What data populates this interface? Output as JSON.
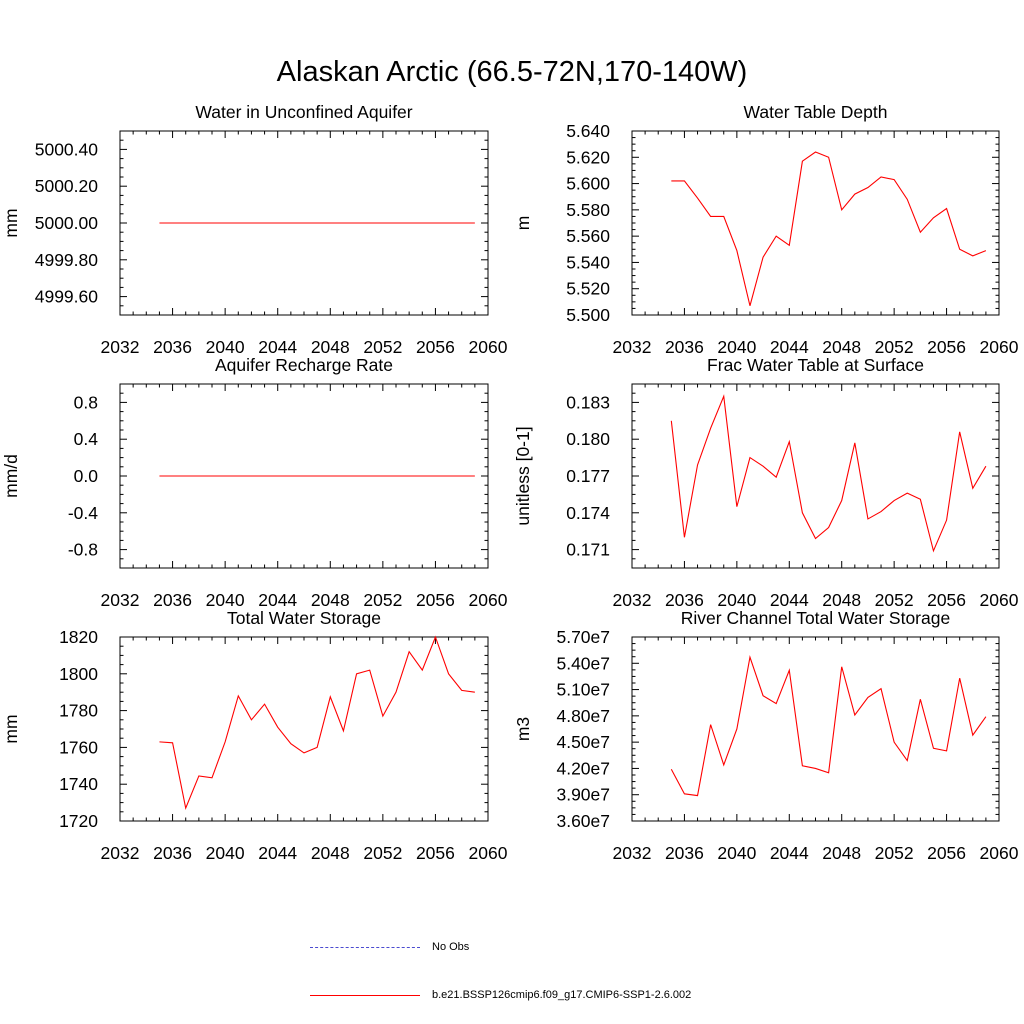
{
  "page": {
    "title": "Alaskan Arctic (66.5-72N,170-140W)"
  },
  "colors": {
    "model": "#ff0000",
    "obs": "#4a4ad0",
    "axis": "#000000"
  },
  "legend": {
    "items": [
      {
        "label": "No Obs",
        "style": "dashed",
        "color": "#4a4ad0"
      },
      {
        "label": "b.e21.BSSP126cmip6.f09_g17.CMIP6-SSP1-2.6.002",
        "style": "solid",
        "color": "#ff0000"
      }
    ]
  },
  "chart_data": [
    {
      "type": "line",
      "title": "Water in Unconfined Aquifer",
      "ylabel": "mm",
      "xlim": [
        2032,
        2060
      ],
      "ylim": [
        4999.5,
        5000.5
      ],
      "xticks": [
        "2032",
        "2036",
        "2040",
        "2044",
        "2048",
        "2052",
        "2056",
        "2060"
      ],
      "yticks": [
        "4999.60",
        "4999.80",
        "5000.00",
        "5000.20",
        "5000.40"
      ],
      "ytick_values": [
        4999.6,
        4999.8,
        5000.0,
        5000.2,
        5000.4
      ],
      "x": [
        2035,
        2036,
        2037,
        2038,
        2039,
        2040,
        2041,
        2042,
        2043,
        2044,
        2045,
        2046,
        2047,
        2048,
        2049,
        2050,
        2051,
        2052,
        2053,
        2054,
        2055,
        2056,
        2057,
        2058,
        2059
      ],
      "series": [
        {
          "values": [
            5000,
            5000,
            5000,
            5000,
            5000,
            5000,
            5000,
            5000,
            5000,
            5000,
            5000,
            5000,
            5000,
            5000,
            5000,
            5000,
            5000,
            5000,
            5000,
            5000,
            5000,
            5000,
            5000,
            5000,
            5000
          ]
        }
      ]
    },
    {
      "type": "line",
      "title": "Water Table Depth",
      "ylabel": "m",
      "xlim": [
        2032,
        2060
      ],
      "ylim": [
        5.5,
        5.64
      ],
      "xticks": [
        "2032",
        "2036",
        "2040",
        "2044",
        "2048",
        "2052",
        "2056",
        "2060"
      ],
      "yticks": [
        "5.500",
        "5.520",
        "5.540",
        "5.560",
        "5.580",
        "5.600",
        "5.620",
        "5.640"
      ],
      "ytick_values": [
        5.5,
        5.52,
        5.54,
        5.56,
        5.58,
        5.6,
        5.62,
        5.64
      ],
      "x": [
        2035,
        2036,
        2037,
        2038,
        2039,
        2040,
        2041,
        2042,
        2043,
        2044,
        2045,
        2046,
        2047,
        2048,
        2049,
        2050,
        2051,
        2052,
        2053,
        2054,
        2055,
        2056,
        2057,
        2058,
        2059
      ],
      "series": [
        {
          "values": [
            5.602,
            5.602,
            5.589,
            5.575,
            5.575,
            5.549,
            5.507,
            5.544,
            5.56,
            5.553,
            5.617,
            5.624,
            5.62,
            5.58,
            5.592,
            5.597,
            5.605,
            5.603,
            5.588,
            5.563,
            5.574,
            5.581,
            5.55,
            5.545,
            5.549
          ]
        }
      ]
    },
    {
      "type": "line",
      "title": "Aquifer Recharge Rate",
      "ylabel": "mm/d",
      "xlim": [
        2032,
        2060
      ],
      "ylim": [
        -1.0,
        1.0
      ],
      "xticks": [
        "2032",
        "2036",
        "2040",
        "2044",
        "2048",
        "2052",
        "2056",
        "2060"
      ],
      "yticks": [
        "-0.8",
        "-0.4",
        "0.0",
        "0.4",
        "0.8"
      ],
      "ytick_values": [
        -0.8,
        -0.4,
        0.0,
        0.4,
        0.8
      ],
      "x": [
        2035,
        2036,
        2037,
        2038,
        2039,
        2040,
        2041,
        2042,
        2043,
        2044,
        2045,
        2046,
        2047,
        2048,
        2049,
        2050,
        2051,
        2052,
        2053,
        2054,
        2055,
        2056,
        2057,
        2058,
        2059
      ],
      "series": [
        {
          "values": [
            0,
            0,
            0,
            0,
            0,
            0,
            0,
            0,
            0,
            0,
            0,
            0,
            0,
            0,
            0,
            0,
            0,
            0,
            0,
            0,
            0,
            0,
            0,
            0,
            0
          ]
        }
      ]
    },
    {
      "type": "line",
      "title": "Frac Water Table at Surface",
      "ylabel": "unitless [0-1]",
      "xlim": [
        2032,
        2060
      ],
      "ylim": [
        0.1695,
        0.1845
      ],
      "xticks": [
        "2032",
        "2036",
        "2040",
        "2044",
        "2048",
        "2052",
        "2056",
        "2060"
      ],
      "yticks": [
        "0.171",
        "0.174",
        "0.177",
        "0.180",
        "0.183"
      ],
      "ytick_values": [
        0.171,
        0.174,
        0.177,
        0.18,
        0.183
      ],
      "x": [
        2035,
        2036,
        2037,
        2038,
        2039,
        2040,
        2041,
        2042,
        2043,
        2044,
        2045,
        2046,
        2047,
        2048,
        2049,
        2050,
        2051,
        2052,
        2053,
        2054,
        2055,
        2056,
        2057,
        2058,
        2059
      ],
      "series": [
        {
          "values": [
            0.1815,
            0.172,
            0.1779,
            0.1809,
            0.1835,
            0.1745,
            0.1785,
            0.1778,
            0.1769,
            0.1798,
            0.174,
            0.1719,
            0.1728,
            0.175,
            0.1797,
            0.1735,
            0.1741,
            0.175,
            0.1756,
            0.1751,
            0.1709,
            0.1734,
            0.1806,
            0.176,
            0.1778
          ]
        }
      ]
    },
    {
      "type": "line",
      "title": "Total Water Storage",
      "ylabel": "mm",
      "xlim": [
        2032,
        2060
      ],
      "ylim": [
        1720,
        1820
      ],
      "xticks": [
        "2032",
        "2036",
        "2040",
        "2044",
        "2048",
        "2052",
        "2056",
        "2060"
      ],
      "yticks": [
        "1720",
        "1740",
        "1760",
        "1780",
        "1800",
        "1820"
      ],
      "ytick_values": [
        1720,
        1740,
        1760,
        1780,
        1800,
        1820
      ],
      "x": [
        2035,
        2036,
        2037,
        2038,
        2039,
        2040,
        2041,
        2042,
        2043,
        2044,
        2045,
        2046,
        2047,
        2048,
        2049,
        2050,
        2051,
        2052,
        2053,
        2054,
        2055,
        2056,
        2057,
        2058,
        2059
      ],
      "series": [
        {
          "values": [
            1763,
            1762.5,
            1727,
            1744.5,
            1743.5,
            1763,
            1788,
            1775,
            1783.5,
            1771,
            1762,
            1757,
            1760,
            1787.5,
            1769,
            1800,
            1802,
            1777,
            1790,
            1812,
            1802,
            1820,
            1800,
            1791,
            1790
          ]
        }
      ]
    },
    {
      "type": "line",
      "title": "River Channel Total Water Storage",
      "ylabel": "m3",
      "xlim": [
        2032,
        2060
      ],
      "ylim": [
        36000000,
        57000000
      ],
      "xticks": [
        "2032",
        "2036",
        "2040",
        "2044",
        "2048",
        "2052",
        "2056",
        "2060"
      ],
      "yticks": [
        "3.60e7",
        "3.90e7",
        "4.20e7",
        "4.50e7",
        "4.80e7",
        "5.10e7",
        "5.40e7",
        "5.70e7"
      ],
      "ytick_values": [
        36000000,
        39000000,
        42000000,
        45000000,
        48000000,
        51000000,
        54000000,
        57000000
      ],
      "x": [
        2035,
        2036,
        2037,
        2038,
        2039,
        2040,
        2041,
        2042,
        2043,
        2044,
        2045,
        2046,
        2047,
        2048,
        2049,
        2050,
        2051,
        2052,
        2053,
        2054,
        2055,
        2056,
        2057,
        2058,
        2059
      ],
      "series": [
        {
          "values": [
            41900000,
            39100000,
            38900000,
            47000000,
            42400000,
            46500000,
            54700000,
            50300000,
            49400000,
            53200000,
            42300000,
            42000000,
            41500000,
            53600000,
            48100000,
            50100000,
            51100000,
            45000000,
            42900000,
            49900000,
            44300000,
            44000000,
            52300000,
            45800000,
            47900000
          ]
        }
      ]
    }
  ]
}
